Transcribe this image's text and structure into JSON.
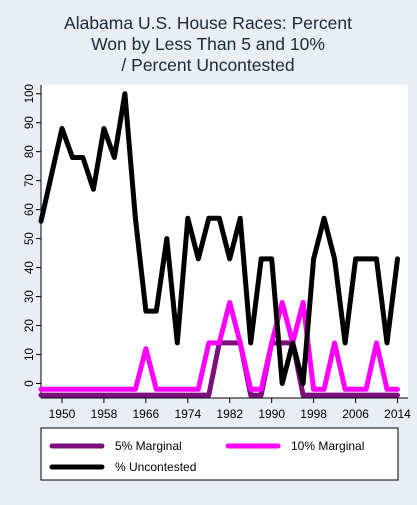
{
  "chart_data": {
    "type": "line",
    "title_lines": [
      "Alabama U.S. House Races: Percent",
      "Won by Less Than 5 and 10%",
      "/ Percent Uncontested"
    ],
    "xlabel": "",
    "ylabel": "",
    "x_ticks": [
      1950,
      1958,
      1966,
      1974,
      1982,
      1990,
      1998,
      2006,
      2014
    ],
    "y_ticks": [
      0,
      10,
      20,
      30,
      40,
      50,
      60,
      70,
      80,
      90,
      100
    ],
    "xlim": [
      1946,
      2016
    ],
    "ylim": [
      -5,
      103
    ],
    "grid": false,
    "legend_position": "bottom",
    "x": [
      1946,
      1948,
      1950,
      1952,
      1954,
      1956,
      1958,
      1960,
      1962,
      1964,
      1966,
      1968,
      1970,
      1972,
      1974,
      1976,
      1978,
      1980,
      1982,
      1984,
      1986,
      1988,
      1990,
      1992,
      1994,
      1996,
      1998,
      2000,
      2002,
      2004,
      2006,
      2008,
      2010,
      2012,
      2014
    ],
    "series": [
      {
        "name": "5% Marginal",
        "color": "#7b0f7b",
        "values": [
          -4,
          -4,
          -4,
          -4,
          -4,
          -4,
          -4,
          -4,
          -4,
          -4,
          -4,
          -4,
          -4,
          -4,
          -4,
          -4,
          -4,
          14,
          14,
          14,
          -4,
          -4,
          14,
          14,
          14,
          -4,
          -4,
          -4,
          -4,
          -4,
          -4,
          -4,
          -4,
          -4,
          -4
        ]
      },
      {
        "name": "10% Marginal",
        "color": "#ff00ff",
        "values": [
          -2,
          -2,
          -2,
          -2,
          -2,
          -2,
          -2,
          -2,
          -2,
          -2,
          12,
          -2,
          -2,
          -2,
          -2,
          -2,
          14,
          14,
          28,
          14,
          -2,
          -2,
          14,
          28,
          14,
          28,
          -2,
          -2,
          14,
          -2,
          -2,
          -2,
          14,
          -2,
          -2
        ]
      },
      {
        "name": "% Uncontested",
        "color": "#000000",
        "values": [
          56,
          72,
          88,
          78,
          78,
          67,
          88,
          78,
          100,
          57,
          25,
          25,
          50,
          14,
          57,
          43,
          57,
          57,
          43,
          57,
          14,
          43,
          43,
          0,
          14,
          0,
          43,
          57,
          43,
          14,
          43,
          43,
          43,
          14,
          43
        ]
      }
    ]
  }
}
